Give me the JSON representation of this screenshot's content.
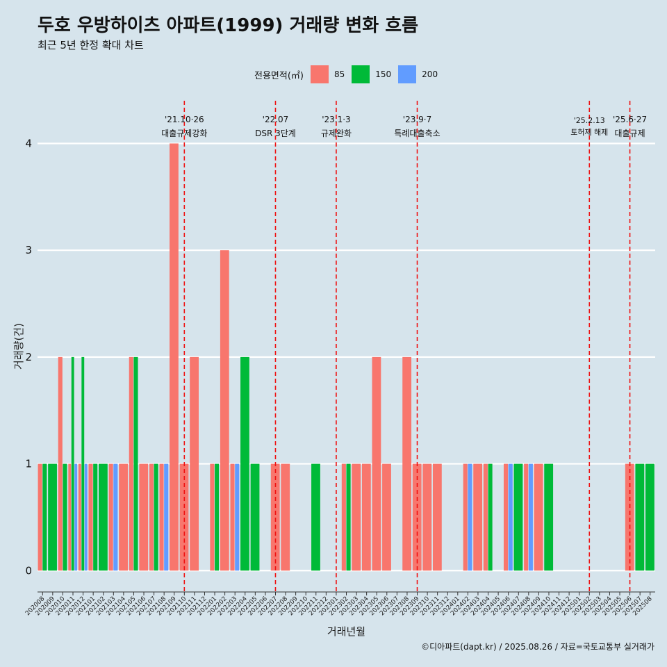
{
  "title": "두호 우방하이츠 아파트(1999) 거래량 변화 흐름",
  "subtitle": "최근 5년 한정 확대 차트",
  "source": "©디아파트(dapt.kr) / 2025.08.26 / 자료=국토교통부 실거래가",
  "legend": {
    "title": "전용면적(㎡)",
    "items": [
      {
        "label": "85",
        "color": "#f8766d"
      },
      {
        "label": "150",
        "color": "#00ba38"
      },
      {
        "label": "200",
        "color": "#619cff"
      }
    ]
  },
  "chart_data": {
    "type": "bar",
    "xlabel": "거래년월",
    "ylabel": "거래량(건)",
    "ylim": [
      -0.2,
      4.4
    ],
    "yticks": [
      0,
      1,
      2,
      3,
      4
    ],
    "categories": [
      "202008",
      "202009",
      "202010",
      "202011",
      "202012",
      "202101",
      "202102",
      "202103",
      "202104",
      "202105",
      "202106",
      "202107",
      "202108",
      "202109",
      "202110",
      "202111",
      "202112",
      "202201",
      "202202",
      "202203",
      "202204",
      "202205",
      "202206",
      "202207",
      "202208",
      "202209",
      "202210",
      "202211",
      "202212",
      "202301",
      "202302",
      "202303",
      "202304",
      "202305",
      "202306",
      "202307",
      "202308",
      "202309",
      "202310",
      "202311",
      "202312",
      "202401",
      "202402",
      "202403",
      "202404",
      "202405",
      "202406",
      "202407",
      "202408",
      "202409",
      "202410",
      "202411",
      "202412",
      "202501",
      "202502",
      "202503",
      "202504",
      "202505",
      "202506",
      "202507",
      "202508"
    ],
    "series": [
      {
        "name": "85",
        "color": "#f8766d",
        "values": [
          1,
          0,
          2,
          1,
          1,
          1,
          0,
          1,
          1,
          2,
          1,
          1,
          1,
          4,
          1,
          2,
          0,
          1,
          3,
          1,
          0,
          0,
          0,
          1,
          1,
          0,
          0,
          0,
          0,
          0,
          1,
          1,
          1,
          2,
          1,
          0,
          2,
          1,
          1,
          1,
          0,
          0,
          1,
          1,
          1,
          0,
          1,
          0,
          1,
          1,
          0,
          0,
          0,
          0,
          0,
          0,
          0,
          0,
          1,
          0,
          0
        ]
      },
      {
        "name": "150",
        "color": "#00ba38",
        "values": [
          1,
          1,
          1,
          2,
          2,
          1,
          1,
          0,
          0,
          2,
          0,
          1,
          0,
          0,
          0,
          0,
          0,
          1,
          0,
          0,
          2,
          1,
          0,
          0,
          0,
          0,
          0,
          1,
          0,
          0,
          1,
          0,
          0,
          0,
          0,
          0,
          0,
          0,
          0,
          0,
          0,
          0,
          0,
          0,
          1,
          0,
          0,
          1,
          0,
          0,
          1,
          0,
          0,
          0,
          0,
          0,
          0,
          0,
          0,
          1,
          1
        ]
      },
      {
        "name": "200",
        "color": "#619cff",
        "values": [
          0,
          0,
          0,
          1,
          1,
          0,
          0,
          1,
          0,
          0,
          0,
          0,
          1,
          0,
          0,
          0,
          0,
          0,
          0,
          1,
          0,
          0,
          0,
          0,
          0,
          0,
          0,
          0,
          0,
          0,
          0,
          0,
          0,
          0,
          0,
          0,
          0,
          0,
          0,
          0,
          0,
          0,
          1,
          0,
          0,
          0,
          1,
          0,
          1,
          0,
          0,
          0,
          0,
          0,
          0,
          0,
          0,
          0,
          0,
          0,
          0
        ]
      }
    ],
    "annotations": [
      {
        "x": "202110",
        "label": "'21.10·26",
        "label2": "대출규제강화"
      },
      {
        "x": "202207",
        "label": "'22.07",
        "label2": "DSR 3단계"
      },
      {
        "x": "202301",
        "label": "'23.1·3",
        "label2": "규제완화"
      },
      {
        "x": "202309",
        "label": "'23.9·7",
        "label2": "특례대출축소"
      },
      {
        "x": "202502",
        "label": "'25.2.13",
        "label2": "토허제 해제"
      },
      {
        "x": "202506",
        "label": "'25.6·27",
        "label2": "대출규제"
      }
    ]
  }
}
